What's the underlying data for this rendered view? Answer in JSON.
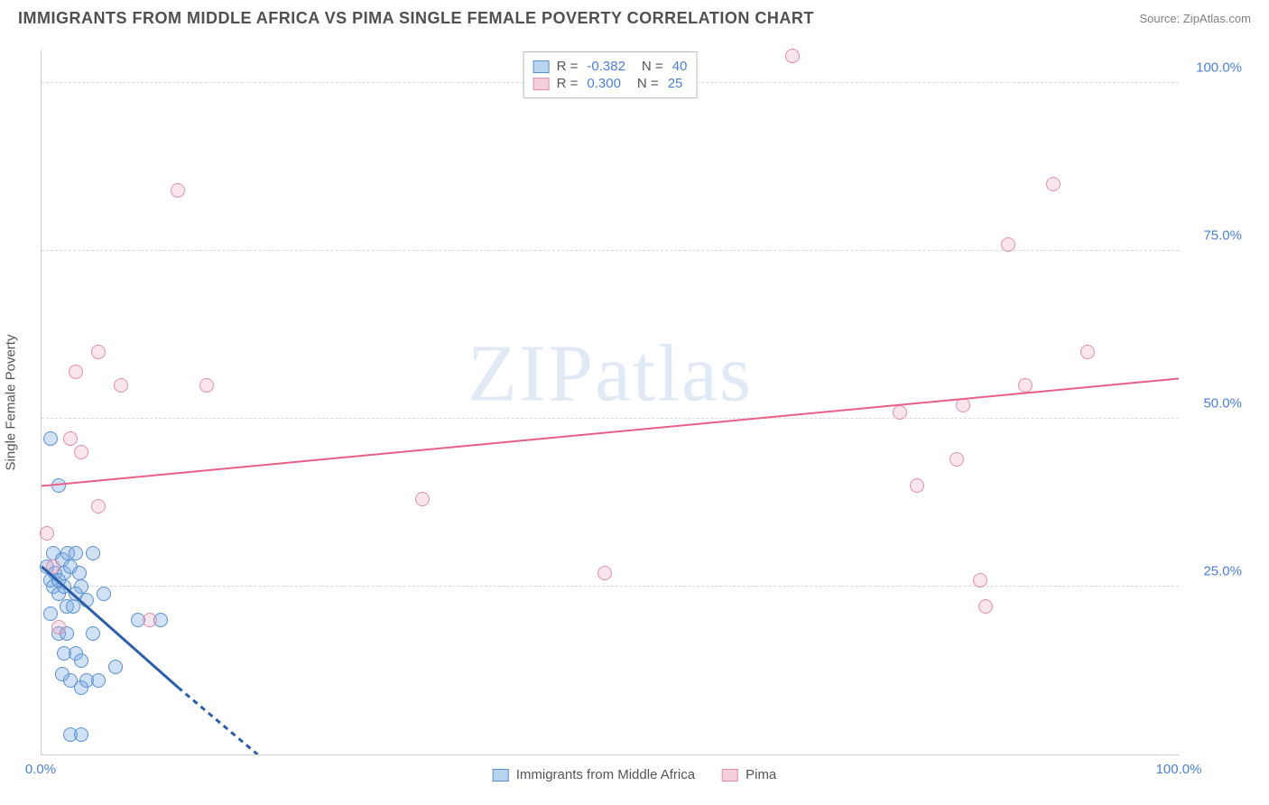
{
  "header": {
    "title": "IMMIGRANTS FROM MIDDLE AFRICA VS PIMA SINGLE FEMALE POVERTY CORRELATION CHART",
    "source_prefix": "Source: ",
    "source": "ZipAtlas.com"
  },
  "watermark": {
    "part1": "ZIP",
    "part2": "atlas"
  },
  "chart": {
    "type": "scatter",
    "y_label": "Single Female Poverty",
    "xlim": [
      0,
      100
    ],
    "ylim": [
      0,
      105
    ],
    "x_ticks": [
      {
        "value": 0,
        "label": "0.0%"
      },
      {
        "value": 100,
        "label": "100.0%"
      }
    ],
    "y_ticks": [
      {
        "value": 25,
        "label": "25.0%"
      },
      {
        "value": 50,
        "label": "50.0%"
      },
      {
        "value": 75,
        "label": "75.0%"
      },
      {
        "value": 100,
        "label": "100.0%"
      }
    ],
    "grid_color": "#d8d8d8",
    "axis_color": "#cccccc",
    "background_color": "#ffffff",
    "tick_label_color": "#4a7fd8",
    "marker_radius": 8,
    "marker_stroke_width": 1.5,
    "series": [
      {
        "id": "immigrants",
        "name": "Immigrants from Middle Africa",
        "fill_color": "rgba(120, 170, 230, 0.35)",
        "stroke_color": "#5a8fd0",
        "swatch_fill": "#b8d4f0",
        "swatch_border": "#5a8fd0",
        "R": "-0.382",
        "N": "40",
        "trend": {
          "solid": {
            "x1": 0,
            "y1": 28,
            "x2": 12,
            "y2": 10
          },
          "dashed": {
            "x1": 12,
            "y1": 10,
            "x2": 19,
            "y2": 0
          },
          "color": "#2c5fa8",
          "width": 3
        },
        "points": [
          {
            "x": 0.5,
            "y": 28
          },
          {
            "x": 0.8,
            "y": 26
          },
          {
            "x": 1.0,
            "y": 25
          },
          {
            "x": 1.2,
            "y": 27
          },
          {
            "x": 1.5,
            "y": 24
          },
          {
            "x": 1.0,
            "y": 30
          },
          {
            "x": 1.8,
            "y": 29
          },
          {
            "x": 2.0,
            "y": 27
          },
          {
            "x": 2.3,
            "y": 30
          },
          {
            "x": 2.5,
            "y": 28
          },
          {
            "x": 3.0,
            "y": 30
          },
          {
            "x": 3.3,
            "y": 27
          },
          {
            "x": 2.0,
            "y": 25
          },
          {
            "x": 1.5,
            "y": 26
          },
          {
            "x": 2.2,
            "y": 22
          },
          {
            "x": 2.8,
            "y": 22
          },
          {
            "x": 0.8,
            "y": 21
          },
          {
            "x": 4.5,
            "y": 30
          },
          {
            "x": 3.5,
            "y": 25
          },
          {
            "x": 3.0,
            "y": 24
          },
          {
            "x": 4.0,
            "y": 23
          },
          {
            "x": 5.5,
            "y": 24
          },
          {
            "x": 1.5,
            "y": 18
          },
          {
            "x": 2.2,
            "y": 18
          },
          {
            "x": 2.0,
            "y": 15
          },
          {
            "x": 3.0,
            "y": 15
          },
          {
            "x": 3.5,
            "y": 14
          },
          {
            "x": 1.8,
            "y": 12
          },
          {
            "x": 2.5,
            "y": 11
          },
          {
            "x": 3.5,
            "y": 10
          },
          {
            "x": 4.0,
            "y": 11
          },
          {
            "x": 5.0,
            "y": 11
          },
          {
            "x": 6.5,
            "y": 13
          },
          {
            "x": 8.5,
            "y": 20
          },
          {
            "x": 10.5,
            "y": 20
          },
          {
            "x": 2.5,
            "y": 3
          },
          {
            "x": 3.5,
            "y": 3
          },
          {
            "x": 1.5,
            "y": 40
          },
          {
            "x": 0.8,
            "y": 47
          },
          {
            "x": 4.5,
            "y": 18
          }
        ]
      },
      {
        "id": "pima",
        "name": "Pima",
        "fill_color": "rgba(240, 150, 180, 0.25)",
        "stroke_color": "#e08fa8",
        "swatch_fill": "#f5d0dc",
        "swatch_border": "#e08fa8",
        "R": "0.300",
        "N": "25",
        "trend": {
          "solid": {
            "x1": 0,
            "y1": 40,
            "x2": 100,
            "y2": 56
          },
          "color": "#e85f88",
          "width": 2
        },
        "points": [
          {
            "x": 0.5,
            "y": 33
          },
          {
            "x": 1.0,
            "y": 28
          },
          {
            "x": 1.5,
            "y": 19
          },
          {
            "x": 2.5,
            "y": 47
          },
          {
            "x": 3.5,
            "y": 45
          },
          {
            "x": 3.0,
            "y": 57
          },
          {
            "x": 5.0,
            "y": 60
          },
          {
            "x": 5.0,
            "y": 37
          },
          {
            "x": 7.0,
            "y": 55
          },
          {
            "x": 9.5,
            "y": 20
          },
          {
            "x": 12.0,
            "y": 84
          },
          {
            "x": 14.5,
            "y": 55
          },
          {
            "x": 33.5,
            "y": 38
          },
          {
            "x": 49.5,
            "y": 27
          },
          {
            "x": 66.0,
            "y": 104
          },
          {
            "x": 75.5,
            "y": 51
          },
          {
            "x": 77.0,
            "y": 40
          },
          {
            "x": 80.5,
            "y": 44
          },
          {
            "x": 82.5,
            "y": 26
          },
          {
            "x": 83.0,
            "y": 22
          },
          {
            "x": 85.0,
            "y": 76
          },
          {
            "x": 86.5,
            "y": 55
          },
          {
            "x": 89.0,
            "y": 85
          },
          {
            "x": 92.0,
            "y": 60
          },
          {
            "x": 81.0,
            "y": 52
          }
        ]
      }
    ]
  },
  "legend_bottom": {
    "items": [
      {
        "series": "immigrants",
        "label": "Immigrants from Middle Africa"
      },
      {
        "series": "pima",
        "label": "Pima"
      }
    ]
  }
}
